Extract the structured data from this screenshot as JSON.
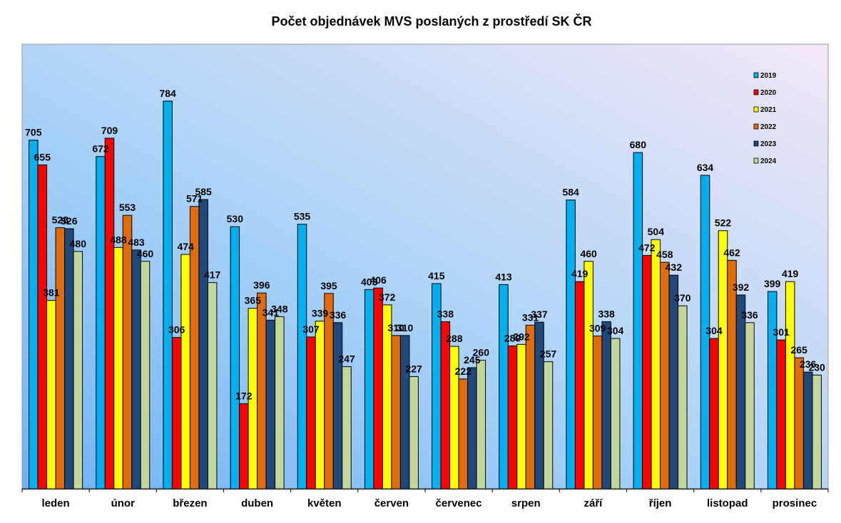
{
  "chart_data": {
    "type": "bar",
    "title": "Počet objednávek MVS poslaných z prostředí SK ČR",
    "xlabel": "",
    "ylabel": "",
    "ylim": [
      0,
      850
    ],
    "grid": false,
    "legend_position": "top-right",
    "categories": [
      "leden",
      "únor",
      "březen",
      "duben",
      "květen",
      "červen",
      "červenec",
      "srpen",
      "září",
      "říjen",
      "listopad",
      "prosinec"
    ],
    "series": [
      {
        "name": "2019",
        "color": "#00B0F0",
        "values": [
          705,
          672,
          784,
          530,
          535,
          403,
          415,
          413,
          584,
          680,
          634,
          399
        ]
      },
      {
        "name": "2020",
        "color": "#FF0000",
        "values": [
          655,
          709,
          306,
          172,
          307,
          406,
          338,
          289,
          419,
          472,
          304,
          301
        ]
      },
      {
        "name": "2021",
        "color": "#FFFF00",
        "values": [
          381,
          488,
          474,
          365,
          339,
          372,
          288,
          292,
          460,
          504,
          522,
          419
        ]
      },
      {
        "name": "2022",
        "color": "#E36C0A",
        "values": [
          528,
          553,
          571,
          396,
          395,
          310,
          222,
          331,
          309,
          458,
          462,
          265
        ]
      },
      {
        "name": "2023",
        "color": "#1F497D",
        "values": [
          526,
          483,
          585,
          341,
          336,
          310,
          245,
          337,
          338,
          432,
          392,
          236
        ]
      },
      {
        "name": "2024",
        "color": "#C4D79B",
        "values": [
          480,
          460,
          417,
          348,
          247,
          227,
          260,
          257,
          304,
          370,
          336,
          230
        ]
      }
    ]
  }
}
